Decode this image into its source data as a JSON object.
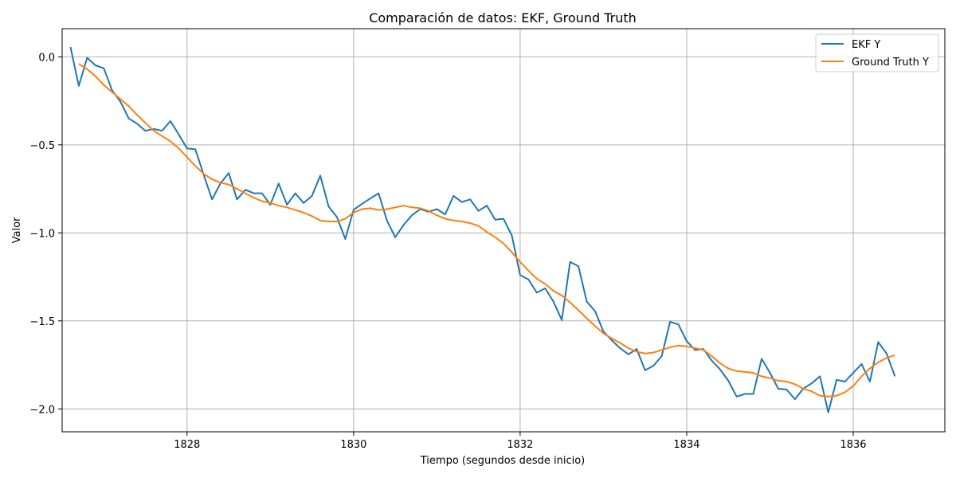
{
  "chart_data": {
    "type": "line",
    "title": "Comparación de datos: EKF, Ground Truth",
    "xlabel": "Tiempo (segundos desde inicio)",
    "ylabel": "Valor",
    "xlim": [
      1826.5,
      1837.1
    ],
    "ylim": [
      -2.13,
      0.16
    ],
    "x_ticks": [
      1828,
      1830,
      1832,
      1834,
      1836
    ],
    "x_tick_labels": [
      "1828",
      "1830",
      "1832",
      "1834",
      "1836"
    ],
    "y_ticks": [
      0.0,
      -0.5,
      -1.0,
      -1.5,
      -2.0
    ],
    "y_tick_labels": [
      "0.0",
      "−0.5",
      "−1.0",
      "−1.5",
      "−2.0"
    ],
    "grid": true,
    "legend_position": "top-right",
    "series": [
      {
        "name": "EKF Y",
        "color": "#1f77b4",
        "points": [
          [
            1826.6,
            0.055
          ],
          [
            1826.7,
            -0.165
          ],
          [
            1826.8,
            -0.005
          ],
          [
            1826.9,
            -0.048
          ],
          [
            1827.0,
            -0.065
          ],
          [
            1827.1,
            -0.19
          ],
          [
            1827.2,
            -0.255
          ],
          [
            1827.3,
            -0.35
          ],
          [
            1827.4,
            -0.38
          ],
          [
            1827.5,
            -0.42
          ],
          [
            1827.6,
            -0.41
          ],
          [
            1827.7,
            -0.42
          ],
          [
            1827.8,
            -0.365
          ],
          [
            1827.9,
            -0.44
          ],
          [
            1828.0,
            -0.52
          ],
          [
            1828.1,
            -0.525
          ],
          [
            1828.2,
            -0.67
          ],
          [
            1828.3,
            -0.81
          ],
          [
            1828.4,
            -0.72
          ],
          [
            1828.5,
            -0.66
          ],
          [
            1828.6,
            -0.81
          ],
          [
            1828.7,
            -0.755
          ],
          [
            1828.8,
            -0.775
          ],
          [
            1828.9,
            -0.775
          ],
          [
            1829.0,
            -0.84
          ],
          [
            1829.1,
            -0.72
          ],
          [
            1829.2,
            -0.84
          ],
          [
            1829.3,
            -0.775
          ],
          [
            1829.4,
            -0.83
          ],
          [
            1829.5,
            -0.79
          ],
          [
            1829.6,
            -0.675
          ],
          [
            1829.7,
            -0.85
          ],
          [
            1829.8,
            -0.91
          ],
          [
            1829.9,
            -1.035
          ],
          [
            1830.0,
            -0.87
          ],
          [
            1830.1,
            -0.835
          ],
          [
            1830.2,
            -0.805
          ],
          [
            1830.3,
            -0.775
          ],
          [
            1830.4,
            -0.93
          ],
          [
            1830.5,
            -1.025
          ],
          [
            1830.6,
            -0.955
          ],
          [
            1830.7,
            -0.9
          ],
          [
            1830.8,
            -0.865
          ],
          [
            1830.9,
            -0.88
          ],
          [
            1831.0,
            -0.865
          ],
          [
            1831.1,
            -0.895
          ],
          [
            1831.2,
            -0.79
          ],
          [
            1831.3,
            -0.825
          ],
          [
            1831.4,
            -0.81
          ],
          [
            1831.5,
            -0.875
          ],
          [
            1831.6,
            -0.845
          ],
          [
            1831.7,
            -0.925
          ],
          [
            1831.8,
            -0.92
          ],
          [
            1831.9,
            -1.015
          ],
          [
            1832.0,
            -1.24
          ],
          [
            1832.1,
            -1.265
          ],
          [
            1832.2,
            -1.34
          ],
          [
            1832.3,
            -1.315
          ],
          [
            1832.4,
            -1.39
          ],
          [
            1832.5,
            -1.495
          ],
          [
            1832.6,
            -1.165
          ],
          [
            1832.7,
            -1.19
          ],
          [
            1832.8,
            -1.39
          ],
          [
            1832.9,
            -1.445
          ],
          [
            1833.0,
            -1.56
          ],
          [
            1833.1,
            -1.61
          ],
          [
            1833.2,
            -1.655
          ],
          [
            1833.3,
            -1.69
          ],
          [
            1833.4,
            -1.66
          ],
          [
            1833.5,
            -1.78
          ],
          [
            1833.6,
            -1.755
          ],
          [
            1833.7,
            -1.7
          ],
          [
            1833.8,
            -1.505
          ],
          [
            1833.9,
            -1.52
          ],
          [
            1834.0,
            -1.615
          ],
          [
            1834.1,
            -1.665
          ],
          [
            1834.2,
            -1.66
          ],
          [
            1834.3,
            -1.725
          ],
          [
            1834.4,
            -1.775
          ],
          [
            1834.5,
            -1.84
          ],
          [
            1834.6,
            -1.93
          ],
          [
            1834.7,
            -1.915
          ],
          [
            1834.8,
            -1.915
          ],
          [
            1834.9,
            -1.715
          ],
          [
            1835.0,
            -1.795
          ],
          [
            1835.1,
            -1.885
          ],
          [
            1835.2,
            -1.89
          ],
          [
            1835.3,
            -1.945
          ],
          [
            1835.4,
            -1.885
          ],
          [
            1835.5,
            -1.855
          ],
          [
            1835.6,
            -1.815
          ],
          [
            1835.7,
            -2.02
          ],
          [
            1835.8,
            -1.835
          ],
          [
            1835.9,
            -1.845
          ],
          [
            1836.0,
            -1.795
          ],
          [
            1836.1,
            -1.745
          ],
          [
            1836.2,
            -1.845
          ],
          [
            1836.3,
            -1.62
          ],
          [
            1836.4,
            -1.685
          ],
          [
            1836.5,
            -1.815
          ]
        ]
      },
      {
        "name": "Ground Truth Y",
        "color": "#ff7f0e",
        "points": [
          [
            1826.7,
            -0.04
          ],
          [
            1826.8,
            -0.07
          ],
          [
            1826.9,
            -0.11
          ],
          [
            1827.0,
            -0.16
          ],
          [
            1827.1,
            -0.2
          ],
          [
            1827.2,
            -0.24
          ],
          [
            1827.3,
            -0.28
          ],
          [
            1827.4,
            -0.33
          ],
          [
            1827.5,
            -0.375
          ],
          [
            1827.6,
            -0.42
          ],
          [
            1827.7,
            -0.45
          ],
          [
            1827.8,
            -0.48
          ],
          [
            1827.9,
            -0.52
          ],
          [
            1828.0,
            -0.57
          ],
          [
            1828.1,
            -0.62
          ],
          [
            1828.2,
            -0.665
          ],
          [
            1828.3,
            -0.695
          ],
          [
            1828.4,
            -0.715
          ],
          [
            1828.5,
            -0.725
          ],
          [
            1828.6,
            -0.75
          ],
          [
            1828.7,
            -0.775
          ],
          [
            1828.8,
            -0.8
          ],
          [
            1828.9,
            -0.82
          ],
          [
            1829.0,
            -0.83
          ],
          [
            1829.1,
            -0.845
          ],
          [
            1829.2,
            -0.855
          ],
          [
            1829.3,
            -0.87
          ],
          [
            1829.4,
            -0.885
          ],
          [
            1829.5,
            -0.905
          ],
          [
            1829.6,
            -0.93
          ],
          [
            1829.7,
            -0.935
          ],
          [
            1829.8,
            -0.935
          ],
          [
            1829.9,
            -0.92
          ],
          [
            1830.0,
            -0.885
          ],
          [
            1830.1,
            -0.865
          ],
          [
            1830.2,
            -0.86
          ],
          [
            1830.3,
            -0.87
          ],
          [
            1830.4,
            -0.865
          ],
          [
            1830.5,
            -0.855
          ],
          [
            1830.6,
            -0.845
          ],
          [
            1830.7,
            -0.855
          ],
          [
            1830.8,
            -0.86
          ],
          [
            1830.9,
            -0.875
          ],
          [
            1831.0,
            -0.9
          ],
          [
            1831.1,
            -0.92
          ],
          [
            1831.2,
            -0.93
          ],
          [
            1831.3,
            -0.935
          ],
          [
            1831.4,
            -0.945
          ],
          [
            1831.5,
            -0.96
          ],
          [
            1831.6,
            -0.995
          ],
          [
            1831.7,
            -1.025
          ],
          [
            1831.8,
            -1.06
          ],
          [
            1831.9,
            -1.11
          ],
          [
            1832.0,
            -1.165
          ],
          [
            1832.1,
            -1.215
          ],
          [
            1832.2,
            -1.26
          ],
          [
            1832.3,
            -1.29
          ],
          [
            1832.4,
            -1.33
          ],
          [
            1832.5,
            -1.355
          ],
          [
            1832.6,
            -1.395
          ],
          [
            1832.7,
            -1.44
          ],
          [
            1832.8,
            -1.485
          ],
          [
            1832.9,
            -1.53
          ],
          [
            1833.0,
            -1.57
          ],
          [
            1833.1,
            -1.6
          ],
          [
            1833.2,
            -1.625
          ],
          [
            1833.3,
            -1.655
          ],
          [
            1833.4,
            -1.675
          ],
          [
            1833.5,
            -1.685
          ],
          [
            1833.6,
            -1.68
          ],
          [
            1833.7,
            -1.665
          ],
          [
            1833.8,
            -1.65
          ],
          [
            1833.9,
            -1.64
          ],
          [
            1834.0,
            -1.645
          ],
          [
            1834.1,
            -1.655
          ],
          [
            1834.2,
            -1.665
          ],
          [
            1834.3,
            -1.7
          ],
          [
            1834.4,
            -1.74
          ],
          [
            1834.5,
            -1.77
          ],
          [
            1834.6,
            -1.785
          ],
          [
            1834.7,
            -1.79
          ],
          [
            1834.8,
            -1.795
          ],
          [
            1834.9,
            -1.815
          ],
          [
            1835.0,
            -1.825
          ],
          [
            1835.1,
            -1.84
          ],
          [
            1835.2,
            -1.845
          ],
          [
            1835.3,
            -1.86
          ],
          [
            1835.4,
            -1.885
          ],
          [
            1835.5,
            -1.9
          ],
          [
            1835.6,
            -1.925
          ],
          [
            1835.7,
            -1.93
          ],
          [
            1835.8,
            -1.925
          ],
          [
            1835.9,
            -1.905
          ],
          [
            1836.0,
            -1.87
          ],
          [
            1836.1,
            -1.815
          ],
          [
            1836.2,
            -1.77
          ],
          [
            1836.3,
            -1.735
          ],
          [
            1836.4,
            -1.71
          ],
          [
            1836.5,
            -1.695
          ]
        ]
      }
    ]
  }
}
